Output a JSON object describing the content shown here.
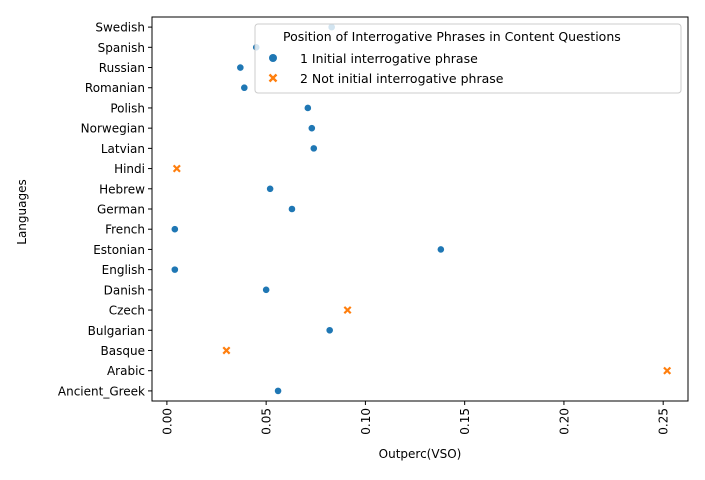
{
  "chart_data": {
    "type": "scatter",
    "title": "",
    "xlabel": "Outperc(VSO)",
    "ylabel": "Languages",
    "xlim": [
      -0.0075,
      0.2625
    ],
    "xticks": [
      0.0,
      0.05,
      0.1,
      0.15,
      0.2,
      0.25
    ],
    "xtick_labels": [
      "0.00",
      "0.05",
      "0.10",
      "0.15",
      "0.20",
      "0.25"
    ],
    "categories": [
      "Swedish",
      "Spanish",
      "Russian",
      "Romanian",
      "Polish",
      "Norwegian",
      "Latvian",
      "Hindi",
      "Hebrew",
      "German",
      "French",
      "Estonian",
      "English",
      "Danish",
      "Czech",
      "Bulgarian",
      "Basque",
      "Arabic",
      "Ancient_Greek"
    ],
    "grid": false,
    "legend": {
      "title": "Position of Interrogative Phrases in Content Questions",
      "placement": "top-right",
      "entries": [
        "1 Initial interrogative phrase",
        "2 Not initial interrogative phrase"
      ]
    },
    "series": [
      {
        "name": "1 Initial interrogative phrase",
        "marker": "circle",
        "color": "#1f77b4",
        "points": [
          {
            "language": "Swedish",
            "value": 0.083
          },
          {
            "language": "Spanish",
            "value": 0.045
          },
          {
            "language": "Russian",
            "value": 0.037
          },
          {
            "language": "Romanian",
            "value": 0.039
          },
          {
            "language": "Polish",
            "value": 0.071
          },
          {
            "language": "Norwegian",
            "value": 0.073
          },
          {
            "language": "Latvian",
            "value": 0.074
          },
          {
            "language": "Hebrew",
            "value": 0.052
          },
          {
            "language": "German",
            "value": 0.063
          },
          {
            "language": "French",
            "value": 0.004
          },
          {
            "language": "Estonian",
            "value": 0.138
          },
          {
            "language": "English",
            "value": 0.004
          },
          {
            "language": "Danish",
            "value": 0.05
          },
          {
            "language": "Bulgarian",
            "value": 0.082
          },
          {
            "language": "Ancient_Greek",
            "value": 0.056
          }
        ]
      },
      {
        "name": "2 Not initial interrogative phrase",
        "marker": "x",
        "color": "#ff7f0e",
        "points": [
          {
            "language": "Hindi",
            "value": 0.005
          },
          {
            "language": "Czech",
            "value": 0.091
          },
          {
            "language": "Basque",
            "value": 0.03
          },
          {
            "language": "Arabic",
            "value": 0.252
          }
        ]
      }
    ]
  }
}
